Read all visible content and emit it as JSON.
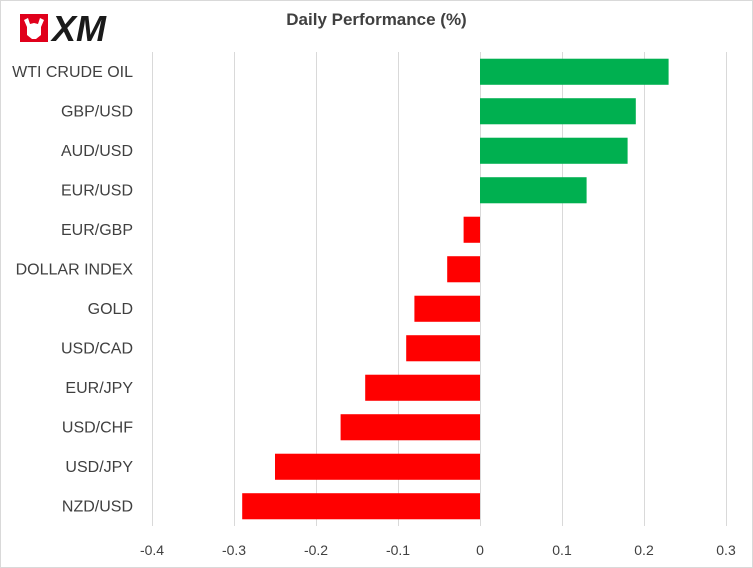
{
  "brand": {
    "logo_text": "XM"
  },
  "chart_data": {
    "type": "bar",
    "orientation": "horizontal",
    "title": "Daily Performance  (%)",
    "categories": [
      "WTI CRUDE OIL",
      "GBP/USD",
      "AUD/USD",
      "EUR/USD",
      "EUR/GBP",
      "DOLLAR INDEX",
      "GOLD",
      "USD/CAD",
      "EUR/JPY",
      "USD/CHF",
      "USD/JPY",
      "NZD/USD"
    ],
    "values": [
      0.23,
      0.19,
      0.18,
      0.13,
      -0.02,
      -0.04,
      -0.08,
      -0.09,
      -0.14,
      -0.17,
      -0.25,
      -0.29
    ],
    "xlim": [
      -0.4,
      0.3
    ],
    "xticks": [
      -0.4,
      -0.3,
      -0.2,
      -0.1,
      0,
      0.1,
      0.2,
      0.3
    ],
    "xtick_labels": [
      "-0.4",
      "-0.3",
      "-0.2",
      "-0.1",
      "0",
      "0.1",
      "0.2",
      "0.3"
    ],
    "grid": true,
    "colors": {
      "positive": "#00B050",
      "negative": "#FF0000"
    }
  }
}
